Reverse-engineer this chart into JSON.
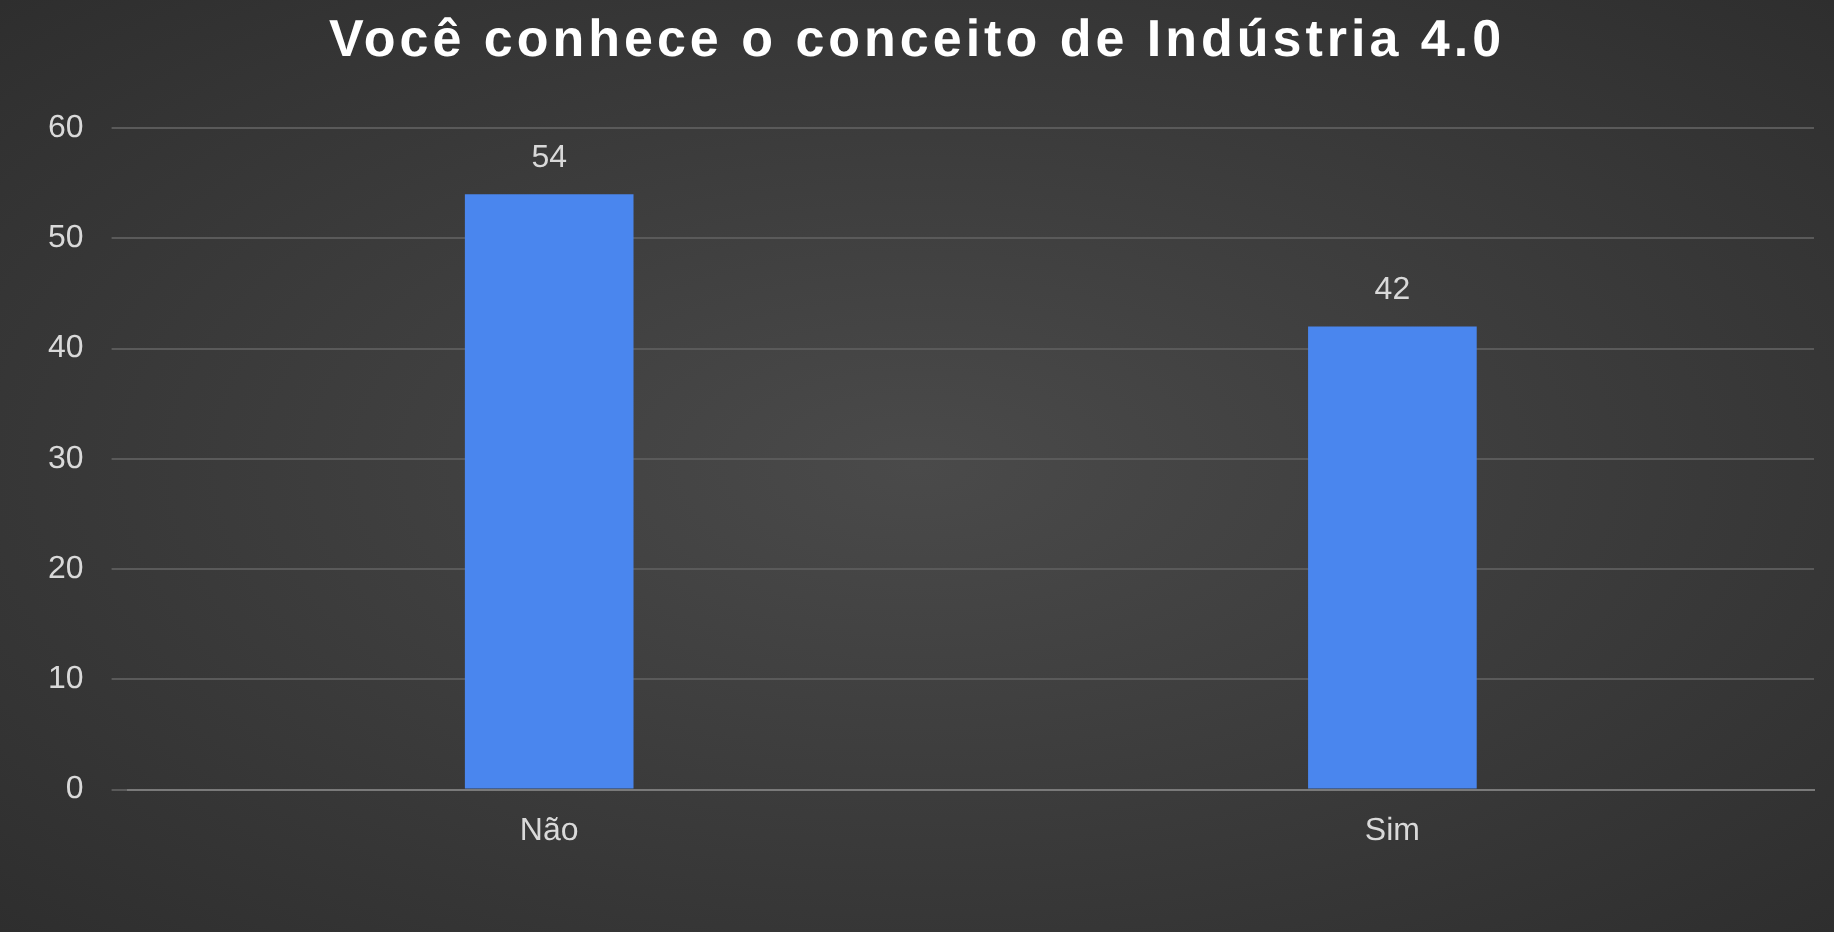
{
  "chart_data": {
    "type": "bar",
    "title": "Você conhece o conceito de Indústria 4.0",
    "categories": [
      "Não",
      "Sim"
    ],
    "values": [
      54,
      42
    ],
    "color": "#4a86ee",
    "ylim": [
      0,
      60
    ],
    "yticks": [
      0,
      10,
      20,
      30,
      40,
      50,
      60
    ],
    "grid": "y",
    "legend": false,
    "data_labels": true
  }
}
